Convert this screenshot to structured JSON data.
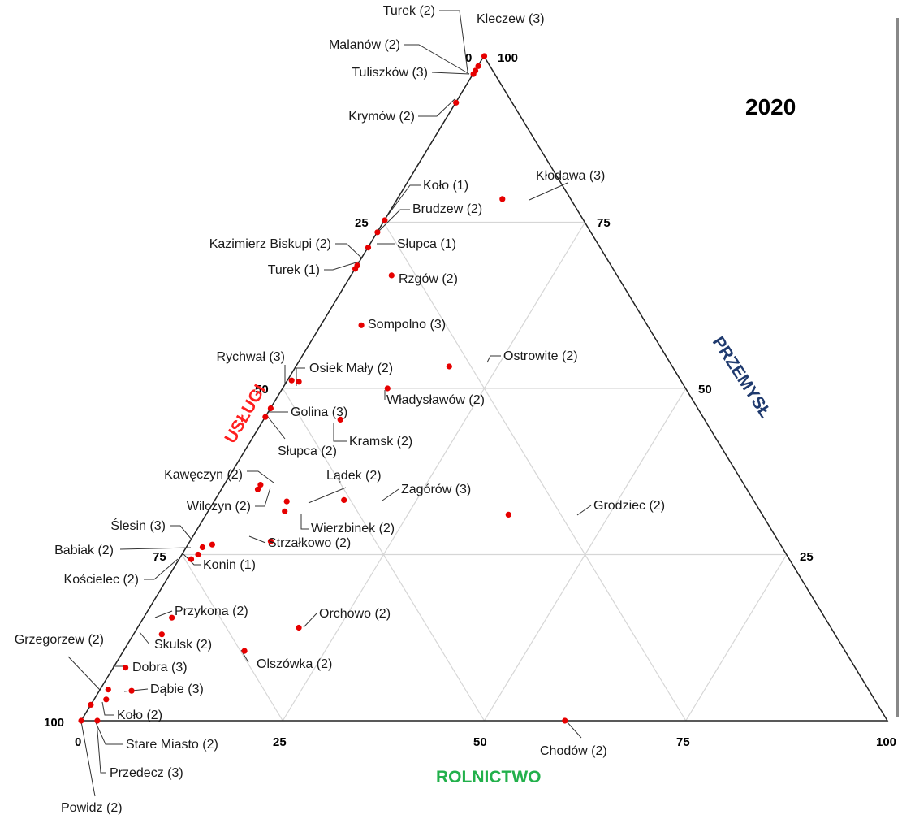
{
  "chart_data": {
    "type": "scatter",
    "subtype": "ternary",
    "title": "2020",
    "axes": {
      "uslugi": {
        "label": "USŁUGI",
        "color": "#ff2020"
      },
      "przemysl": {
        "label": "PRZEMYSŁ",
        "color": "#1f3a6e"
      },
      "rolnictwo": {
        "label": "ROLNICTWO",
        "color": "#22b04b"
      }
    },
    "ticks": {
      "uslugi": [
        "0",
        "25",
        "50",
        "75",
        "100"
      ],
      "przemysl": [
        "100",
        "75",
        "50",
        "25"
      ],
      "rolnictwo": [
        "0",
        "25",
        "50",
        "75",
        "100"
      ]
    },
    "grid": true,
    "point_color": "#e60000",
    "points": [
      {
        "name": "Turek (2)",
        "rolnictwo": 0,
        "przemysl": 98.5
      },
      {
        "name": "Kleczew (3)",
        "rolnictwo": 0,
        "przemysl": 100
      },
      {
        "name": "Malanów (2)",
        "rolnictwo": 0,
        "przemysl": 97.8
      },
      {
        "name": "Tuliszków (3)",
        "rolnictwo": 0,
        "przemysl": 97.3
      },
      {
        "name": "Krymów (2)",
        "rolnictwo": 0,
        "przemysl": 93
      },
      {
        "name": "Kłodawa (3)",
        "rolnictwo": 13,
        "przemysl": 78.5
      },
      {
        "name": "Koło (1)",
        "rolnictwo": 0,
        "przemysl": 75.3
      },
      {
        "name": "Brudzew (2)",
        "rolnictwo": 0,
        "przemysl": 73.5
      },
      {
        "name": "Słupca (1)",
        "rolnictwo": 0,
        "przemysl": 71.2
      },
      {
        "name": "Kazimierz Biskupi (2)",
        "rolnictwo": 0,
        "przemysl": 68.5
      },
      {
        "name": "Turek (1)",
        "rolnictwo": 0,
        "przemysl": 68
      },
      {
        "name": "Rzgów (2)",
        "rolnictwo": 5,
        "przemysl": 67
      },
      {
        "name": "Sompolno (3)",
        "rolnictwo": 5,
        "przemysl": 59.5
      },
      {
        "name": "Ostrowite (2)",
        "rolnictwo": 19,
        "przemysl": 53.3
      },
      {
        "name": "Rychwał (3)",
        "rolnictwo": 0.5,
        "przemysl": 51.2
      },
      {
        "name": "Osiek Mały (2)",
        "rolnictwo": 1.5,
        "przemysl": 51
      },
      {
        "name": "Władysławów (2)",
        "rolnictwo": 13,
        "przemysl": 50
      },
      {
        "name": "Golina (3)",
        "rolnictwo": 0,
        "przemysl": 47
      },
      {
        "name": "Słupca (2)",
        "rolnictwo": 0,
        "przemysl": 45.7
      },
      {
        "name": "Kramsk (2)",
        "rolnictwo": 9.5,
        "przemysl": 45.3
      },
      {
        "name": "Kawęczyn (2)",
        "rolnictwo": 4.5,
        "przemysl": 35.5
      },
      {
        "name": "Wilczyn (2)",
        "rolnictwo": 4.5,
        "przemysl": 34.8
      },
      {
        "name": "Lądek (2)",
        "rolnictwo": 9,
        "przemysl": 33
      },
      {
        "name": "Zagórów (3)",
        "rolnictwo": 16,
        "przemysl": 33.2
      },
      {
        "name": "Wierzbinek (2)",
        "rolnictwo": 9.5,
        "przemysl": 31.5
      },
      {
        "name": "Grodziec (2)",
        "rolnictwo": 37.5,
        "przemysl": 31
      },
      {
        "name": "Ślesin (3)",
        "rolnictwo": 3,
        "przemysl": 26.5
      },
      {
        "name": "Strzałkowo (2)",
        "rolnictwo": 10,
        "przemysl": 27
      },
      {
        "name": "Babiak (2)",
        "rolnictwo": 2,
        "przemysl": 26.1
      },
      {
        "name": "Konin (1)",
        "rolnictwo": 2,
        "przemysl": 25
      },
      {
        "name": "Kościelec (2)",
        "rolnictwo": 1.5,
        "przemysl": 24.3
      },
      {
        "name": "Przykona (2)",
        "rolnictwo": 3.5,
        "przemysl": 15.5
      },
      {
        "name": "Orchowo (2)",
        "rolnictwo": 20,
        "przemysl": 14
      },
      {
        "name": "Skulsk (2)",
        "rolnictwo": 3.5,
        "przemysl": 13
      },
      {
        "name": "Olszówka (2)",
        "rolnictwo": 15,
        "przemysl": 10.5
      },
      {
        "name": "Dobra (3)",
        "rolnictwo": 1.5,
        "przemysl": 8
      },
      {
        "name": "Dąbie (3)",
        "rolnictwo": 4,
        "przemysl": 4.5
      },
      {
        "name": "Grzegorzew (2)",
        "rolnictwo": 1,
        "przemysl": 4.7
      },
      {
        "name": "Koło (2)",
        "rolnictwo": 1.5,
        "przemysl": 3.2
      },
      {
        "name": "Stare Miasto (2)",
        "rolnictwo": 0,
        "przemysl": 2.4
      },
      {
        "name": "Chodów (2)",
        "rolnictwo": 60,
        "przemysl": 0
      },
      {
        "name": "Przedecz (3)",
        "rolnictwo": 2,
        "przemysl": 0
      },
      {
        "name": "Powidz (2)",
        "rolnictwo": 0,
        "przemysl": 0
      }
    ]
  }
}
